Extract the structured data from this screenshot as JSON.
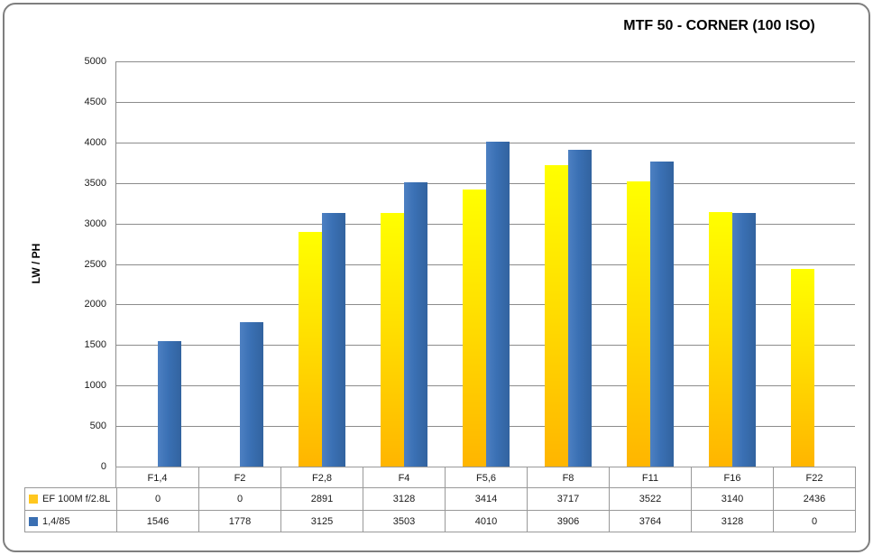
{
  "chart_data": {
    "type": "bar",
    "title": "MTF 50 - CORNER (100 ISO)",
    "ylabel": "LW / PH",
    "xlabel": "",
    "categories": [
      "F1,4",
      "F2",
      "F2,8",
      "F4",
      "F5,6",
      "F8",
      "F11",
      "F16",
      "F22"
    ],
    "series": [
      {
        "name": "EF 100M f/2.8L",
        "color": "#ffc71e",
        "gradient": [
          "#ffff00",
          "#ffdf00",
          "#ffb500"
        ],
        "gradient_dir": "180deg",
        "values": [
          0,
          0,
          2891,
          3128,
          3414,
          3717,
          3522,
          3140,
          2436
        ]
      },
      {
        "name": "1,4/85",
        "color": "#3a6fb2",
        "gradient": [
          "#4d80c2",
          "#3a70b4",
          "#32639f"
        ],
        "gradient_dir": "90deg",
        "values": [
          1546,
          1778,
          3125,
          3503,
          4010,
          3906,
          3764,
          3128,
          0
        ]
      }
    ],
    "ylim": [
      0,
      5000
    ],
    "yticks": [
      0,
      500,
      1000,
      1500,
      2000,
      2500,
      3000,
      3500,
      4000,
      4500,
      5000
    ],
    "grid": true,
    "legend_position": "data-table-left",
    "data_table_shown": true
  },
  "colors": {
    "background": "#ffffff",
    "frame_border": "#7f7f7f",
    "grid": "#8c8c8c",
    "axis": "#8c8c8c",
    "table_border": "#999999",
    "text": "#1a1a1a"
  }
}
